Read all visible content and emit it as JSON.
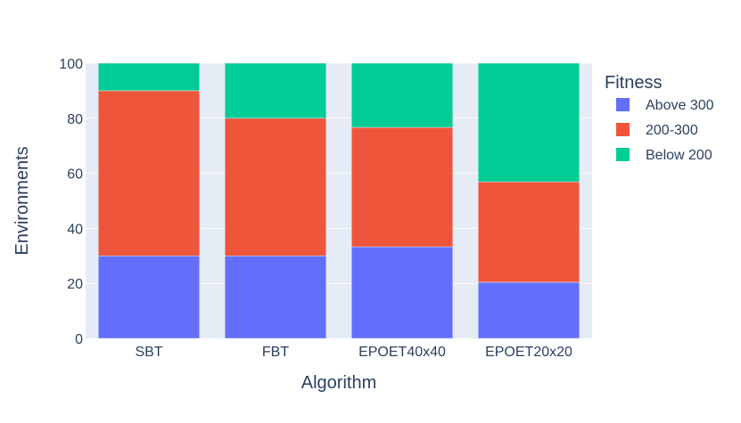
{
  "chart_data": {
    "type": "bar",
    "stacked": true,
    "categories": [
      "SBT",
      "FBT",
      "EPOET40x40",
      "EPOET20x20"
    ],
    "series": [
      {
        "name": "Above 300",
        "color": "#636efa",
        "values": [
          30,
          30,
          33.3,
          20.4
        ]
      },
      {
        "name": "200-300",
        "color": "#ef553b",
        "values": [
          60,
          50,
          43.4,
          36.5
        ]
      },
      {
        "name": "Below 200",
        "color": "#00cc96",
        "values": [
          10,
          20,
          23.3,
          43.1
        ]
      }
    ],
    "xlabel": "Algorithm",
    "ylabel": "Environments",
    "ylim": [
      0,
      100
    ],
    "yticks": [
      0,
      20,
      40,
      60,
      80,
      100
    ],
    "legend": {
      "title": "Fitness",
      "position": "right"
    },
    "background": "#e5ecf6",
    "grid": true
  }
}
